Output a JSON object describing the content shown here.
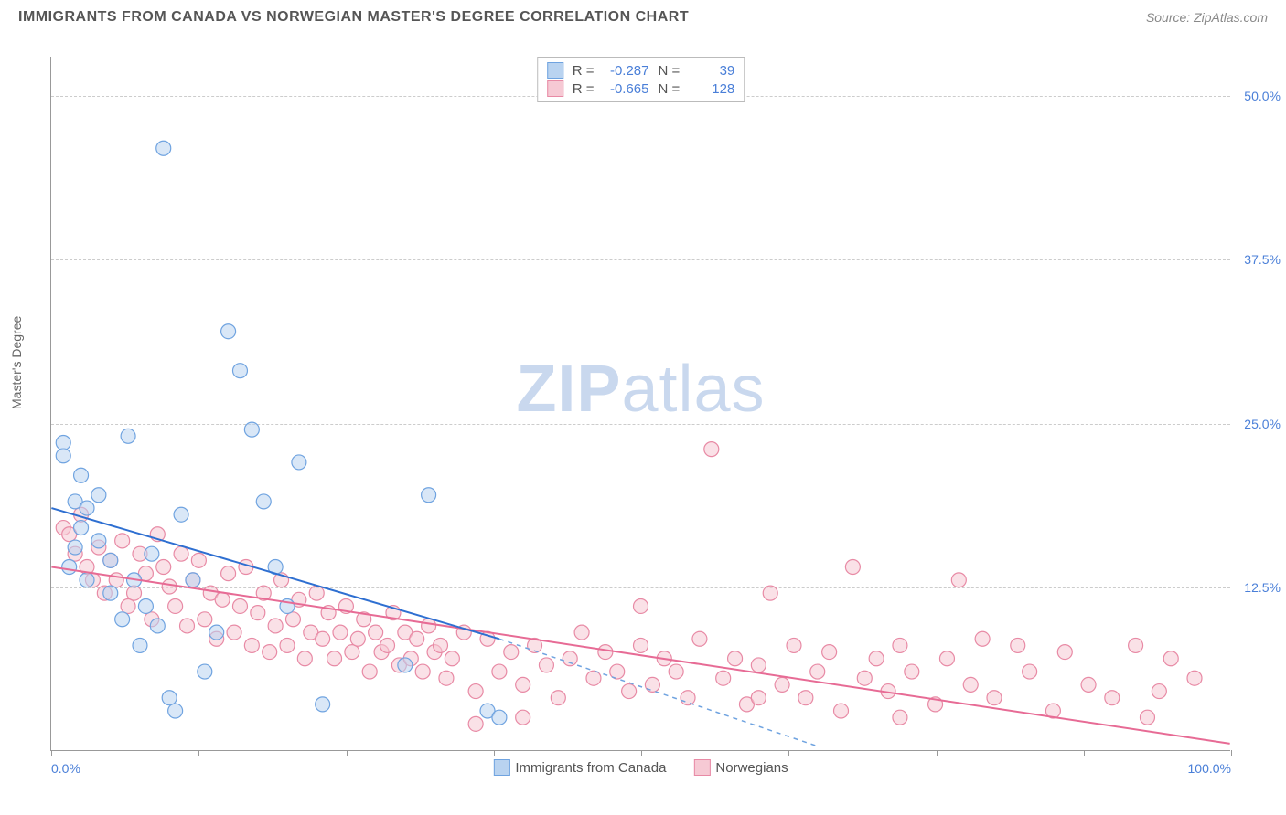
{
  "title": "IMMIGRANTS FROM CANADA VS NORWEGIAN MASTER'S DEGREE CORRELATION CHART",
  "source_label": "Source: ZipAtlas.com",
  "watermark_bold": "ZIP",
  "watermark_light": "atlas",
  "ylabel": "Master's Degree",
  "chart": {
    "type": "scatter",
    "xlim": [
      0,
      100
    ],
    "ylim": [
      0,
      53
    ],
    "xticks": [
      0,
      25,
      50,
      75,
      100
    ],
    "xticks_minor": [
      12.5,
      37.5,
      62.5,
      87.5
    ],
    "xtick_labels": {
      "0": "0.0%",
      "100": "100.0%"
    },
    "yticks": [
      12.5,
      25.0,
      37.5,
      50.0
    ],
    "ytick_labels": [
      "12.5%",
      "25.0%",
      "37.5%",
      "50.0%"
    ],
    "grid_color": "#cccccc",
    "axis_color": "#999999",
    "background_color": "#ffffff",
    "tick_label_color": "#4a7fd8",
    "axis_label_color": "#666666",
    "point_radius": 8,
    "point_opacity": 0.55,
    "line_width": 2,
    "series": [
      {
        "name": "Immigrants from Canada",
        "legend_label": "Immigrants from Canada",
        "color_fill": "#b9d3f0",
        "color_stroke": "#6fa3e0",
        "line_color": "#2e6fd1",
        "R_label": "R =",
        "R": "-0.287",
        "N_label": "N =",
        "N": "39",
        "trend": {
          "x1": 0,
          "y1": 18.5,
          "x2": 38,
          "y2": 8.5,
          "dash_x1": 38,
          "dash_y1": 8.5,
          "dash_x2": 65,
          "dash_y2": 0.3
        },
        "points": [
          [
            1,
            22.5
          ],
          [
            1,
            23.5
          ],
          [
            1.5,
            14
          ],
          [
            2,
            19
          ],
          [
            2.5,
            21
          ],
          [
            2,
            15.5
          ],
          [
            2.5,
            17
          ],
          [
            3,
            18.5
          ],
          [
            3,
            13
          ],
          [
            4,
            16
          ],
          [
            4,
            19.5
          ],
          [
            5,
            12
          ],
          [
            5,
            14.5
          ],
          [
            6,
            10
          ],
          [
            6.5,
            24
          ],
          [
            7,
            13
          ],
          [
            7.5,
            8
          ],
          [
            8,
            11
          ],
          [
            8.5,
            15
          ],
          [
            9,
            9.5
          ],
          [
            9.5,
            46
          ],
          [
            10,
            4
          ],
          [
            10.5,
            3
          ],
          [
            11,
            18
          ],
          [
            12,
            13
          ],
          [
            13,
            6
          ],
          [
            14,
            9
          ],
          [
            15,
            32
          ],
          [
            16,
            29
          ],
          [
            17,
            24.5
          ],
          [
            18,
            19
          ],
          [
            19,
            14
          ],
          [
            20,
            11
          ],
          [
            21,
            22
          ],
          [
            23,
            3.5
          ],
          [
            30,
            6.5
          ],
          [
            32,
            19.5
          ],
          [
            37,
            3
          ],
          [
            38,
            2.5
          ]
        ]
      },
      {
        "name": "Norwegians",
        "legend_label": "Norwegians",
        "color_fill": "#f6c9d4",
        "color_stroke": "#e88aa5",
        "line_color": "#e76b95",
        "R_label": "R =",
        "R": "-0.665",
        "N_label": "N =",
        "N": "128",
        "trend": {
          "x1": 0,
          "y1": 14,
          "x2": 100,
          "y2": 0.5
        },
        "points": [
          [
            1,
            17
          ],
          [
            1.5,
            16.5
          ],
          [
            2,
            15
          ],
          [
            2.5,
            18
          ],
          [
            3,
            14
          ],
          [
            3.5,
            13
          ],
          [
            4,
            15.5
          ],
          [
            4.5,
            12
          ],
          [
            5,
            14.5
          ],
          [
            5.5,
            13
          ],
          [
            6,
            16
          ],
          [
            6.5,
            11
          ],
          [
            7,
            12
          ],
          [
            7.5,
            15
          ],
          [
            8,
            13.5
          ],
          [
            8.5,
            10
          ],
          [
            9,
            16.5
          ],
          [
            9.5,
            14
          ],
          [
            10,
            12.5
          ],
          [
            10.5,
            11
          ],
          [
            11,
            15
          ],
          [
            11.5,
            9.5
          ],
          [
            12,
            13
          ],
          [
            12.5,
            14.5
          ],
          [
            13,
            10
          ],
          [
            13.5,
            12
          ],
          [
            14,
            8.5
          ],
          [
            14.5,
            11.5
          ],
          [
            15,
            13.5
          ],
          [
            15.5,
            9
          ],
          [
            16,
            11
          ],
          [
            16.5,
            14
          ],
          [
            17,
            8
          ],
          [
            17.5,
            10.5
          ],
          [
            18,
            12
          ],
          [
            18.5,
            7.5
          ],
          [
            19,
            9.5
          ],
          [
            19.5,
            13
          ],
          [
            20,
            8
          ],
          [
            20.5,
            10
          ],
          [
            21,
            11.5
          ],
          [
            21.5,
            7
          ],
          [
            22,
            9
          ],
          [
            22.5,
            12
          ],
          [
            23,
            8.5
          ],
          [
            23.5,
            10.5
          ],
          [
            24,
            7
          ],
          [
            24.5,
            9
          ],
          [
            25,
            11
          ],
          [
            25.5,
            7.5
          ],
          [
            26,
            8.5
          ],
          [
            26.5,
            10
          ],
          [
            27,
            6
          ],
          [
            27.5,
            9
          ],
          [
            28,
            7.5
          ],
          [
            28.5,
            8
          ],
          [
            29,
            10.5
          ],
          [
            29.5,
            6.5
          ],
          [
            30,
            9
          ],
          [
            30.5,
            7
          ],
          [
            31,
            8.5
          ],
          [
            31.5,
            6
          ],
          [
            32,
            9.5
          ],
          [
            32.5,
            7.5
          ],
          [
            33,
            8
          ],
          [
            33.5,
            5.5
          ],
          [
            34,
            7
          ],
          [
            35,
            9
          ],
          [
            36,
            4.5
          ],
          [
            37,
            8.5
          ],
          [
            38,
            6
          ],
          [
            39,
            7.5
          ],
          [
            40,
            5
          ],
          [
            41,
            8
          ],
          [
            42,
            6.5
          ],
          [
            43,
            4
          ],
          [
            44,
            7
          ],
          [
            45,
            9
          ],
          [
            46,
            5.5
          ],
          [
            47,
            7.5
          ],
          [
            48,
            6
          ],
          [
            49,
            4.5
          ],
          [
            50,
            8
          ],
          [
            51,
            5
          ],
          [
            52,
            7
          ],
          [
            53,
            6
          ],
          [
            54,
            4
          ],
          [
            55,
            8.5
          ],
          [
            56,
            23
          ],
          [
            57,
            5.5
          ],
          [
            58,
            7
          ],
          [
            59,
            3.5
          ],
          [
            60,
            6.5
          ],
          [
            61,
            12
          ],
          [
            62,
            5
          ],
          [
            63,
            8
          ],
          [
            64,
            4
          ],
          [
            65,
            6
          ],
          [
            66,
            7.5
          ],
          [
            67,
            3
          ],
          [
            68,
            14
          ],
          [
            69,
            5.5
          ],
          [
            70,
            7
          ],
          [
            71,
            4.5
          ],
          [
            72,
            8
          ],
          [
            73,
            6
          ],
          [
            75,
            3.5
          ],
          [
            76,
            7
          ],
          [
            77,
            13
          ],
          [
            78,
            5
          ],
          [
            79,
            8.5
          ],
          [
            80,
            4
          ],
          [
            82,
            8
          ],
          [
            83,
            6
          ],
          [
            85,
            3
          ],
          [
            86,
            7.5
          ],
          [
            88,
            5
          ],
          [
            90,
            4
          ],
          [
            92,
            8
          ],
          [
            94,
            4.5
          ],
          [
            95,
            7
          ],
          [
            97,
            5.5
          ],
          [
            93,
            2.5
          ],
          [
            72,
            2.5
          ],
          [
            40,
            2.5
          ],
          [
            36,
            2
          ],
          [
            50,
            11
          ],
          [
            60,
            4
          ]
        ]
      }
    ]
  }
}
